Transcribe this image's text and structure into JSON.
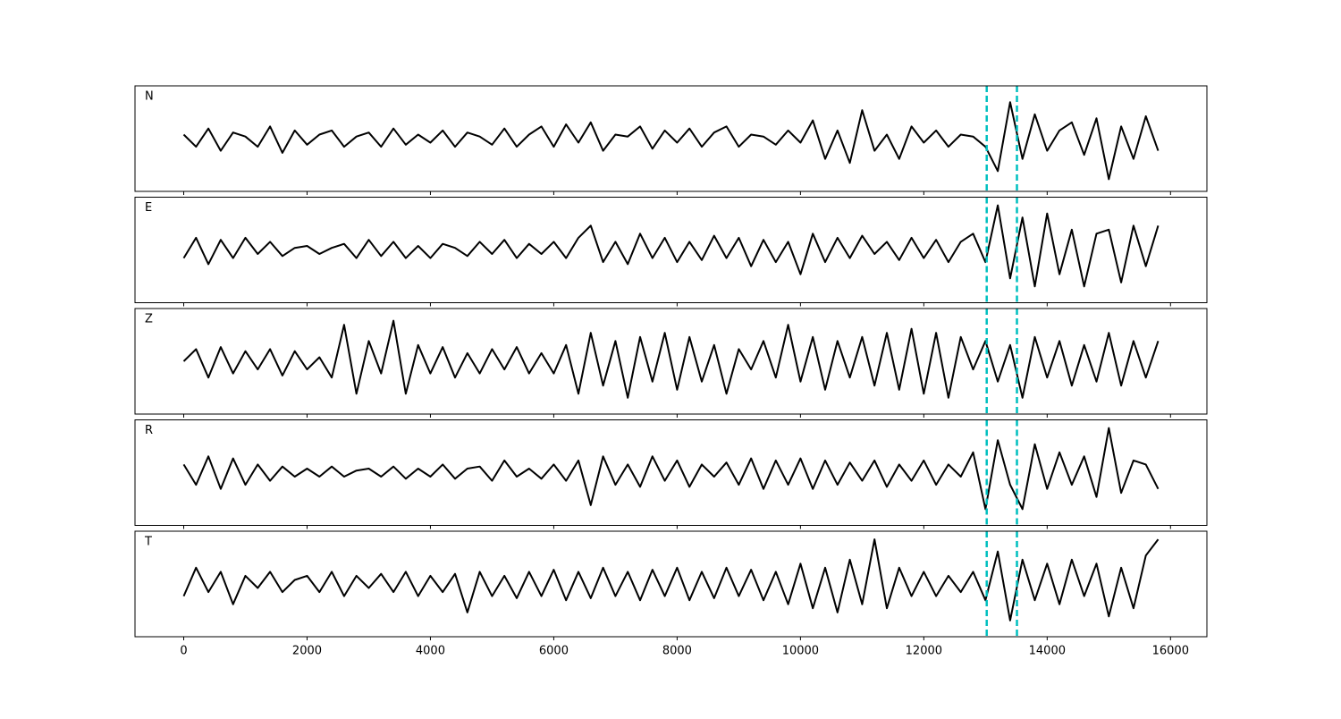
{
  "chart_data": [
    {
      "type": "line",
      "label": "N",
      "color": "#000000",
      "xlim": [
        -790,
        16590
      ],
      "ylim": [
        -1.3,
        1.3
      ],
      "xticks": [
        0,
        2000,
        4000,
        6000,
        8000,
        10000,
        12000,
        14000,
        16000
      ],
      "show_xtick_labels": false,
      "vlines": [
        13020,
        13510
      ],
      "vline_color": "#00bfbf",
      "x": [
        0,
        200,
        400,
        600,
        800,
        1000,
        1200,
        1400,
        1600,
        1800,
        2000,
        2200,
        2400,
        2600,
        2800,
        3000,
        3200,
        3400,
        3600,
        3800,
        4000,
        4200,
        4400,
        4600,
        4800,
        5000,
        5200,
        5400,
        5600,
        5800,
        6000,
        6200,
        6400,
        6600,
        6800,
        7000,
        7200,
        7400,
        7600,
        7800,
        8000,
        8200,
        8400,
        8600,
        8800,
        9000,
        9200,
        9400,
        9600,
        9800,
        10000,
        10200,
        10400,
        10600,
        10800,
        11000,
        11200,
        11400,
        11600,
        11800,
        12000,
        12200,
        12400,
        12600,
        12800,
        13000,
        13200,
        13400,
        13600,
        13800,
        14000,
        14200,
        14400,
        14600,
        14800,
        15000,
        15200,
        15400,
        15600,
        15800
      ],
      "values": [
        0.1,
        -0.2,
        0.25,
        -0.3,
        0.15,
        0.05,
        -0.2,
        0.3,
        -0.35,
        0.2,
        -0.15,
        0.1,
        0.2,
        -0.2,
        0.05,
        0.15,
        -0.2,
        0.25,
        -0.15,
        0.1,
        -0.1,
        0.2,
        -0.2,
        0.15,
        0.05,
        -0.15,
        0.25,
        -0.2,
        0.1,
        0.3,
        -0.2,
        0.35,
        -0.1,
        0.4,
        -0.3,
        0.1,
        0.05,
        0.3,
        -0.25,
        0.2,
        -0.1,
        0.25,
        -0.2,
        0.15,
        0.3,
        -0.2,
        0.1,
        0.05,
        -0.15,
        0.2,
        -0.1,
        0.45,
        -0.5,
        0.2,
        -0.6,
        0.7,
        -0.3,
        0.1,
        -0.5,
        0.3,
        -0.1,
        0.2,
        -0.2,
        0.1,
        0.05,
        -0.2,
        -0.8,
        0.9,
        -0.5,
        0.6,
        -0.3,
        0.2,
        0.4,
        -0.4,
        0.5,
        -1.0,
        0.3,
        -0.5,
        0.55,
        -0.3
      ]
    },
    {
      "type": "line",
      "label": "E",
      "color": "#000000",
      "xlim": [
        -790,
        16590
      ],
      "ylim": [
        -1.3,
        1.3
      ],
      "xticks": [
        0,
        2000,
        4000,
        6000,
        8000,
        10000,
        12000,
        14000,
        16000
      ],
      "show_xtick_labels": false,
      "vlines": [
        13020,
        13510
      ],
      "vline_color": "#00bfbf",
      "x": [
        0,
        200,
        400,
        600,
        800,
        1000,
        1200,
        1400,
        1600,
        1800,
        2000,
        2200,
        2400,
        2600,
        2800,
        3000,
        3200,
        3400,
        3600,
        3800,
        4000,
        4200,
        4400,
        4600,
        4800,
        5000,
        5200,
        5400,
        5600,
        5800,
        6000,
        6200,
        6400,
        6600,
        6800,
        7000,
        7200,
        7400,
        7600,
        7800,
        8000,
        8200,
        8400,
        8600,
        8800,
        9000,
        9200,
        9400,
        9600,
        9800,
        10000,
        10200,
        10400,
        10600,
        10800,
        11000,
        11200,
        11400,
        11600,
        11800,
        12000,
        12200,
        12400,
        12600,
        12800,
        13000,
        13200,
        13400,
        13600,
        13800,
        14000,
        14200,
        14400,
        14600,
        14800,
        15000,
        15200,
        15400,
        15600,
        15800
      ],
      "values": [
        -0.2,
        0.3,
        -0.35,
        0.25,
        -0.2,
        0.3,
        -0.1,
        0.2,
        -0.15,
        0.05,
        0.1,
        -0.1,
        0.05,
        0.15,
        -0.2,
        0.25,
        -0.15,
        0.2,
        -0.2,
        0.1,
        -0.2,
        0.15,
        0.05,
        -0.15,
        0.2,
        -0.1,
        0.25,
        -0.2,
        0.15,
        -0.1,
        0.2,
        -0.2,
        0.3,
        0.6,
        -0.3,
        0.2,
        -0.35,
        0.4,
        -0.2,
        0.3,
        -0.3,
        0.2,
        -0.25,
        0.35,
        -0.2,
        0.3,
        -0.4,
        0.25,
        -0.3,
        0.2,
        -0.6,
        0.4,
        -0.3,
        0.3,
        -0.2,
        0.35,
        -0.1,
        0.2,
        -0.25,
        0.3,
        -0.2,
        0.25,
        -0.3,
        0.2,
        0.4,
        -0.3,
        1.1,
        -0.7,
        0.8,
        -0.9,
        0.9,
        -0.6,
        0.5,
        -0.9,
        0.4,
        0.5,
        -0.8,
        0.6,
        -0.4,
        0.6
      ]
    },
    {
      "type": "line",
      "label": "Z",
      "color": "#000000",
      "xlim": [
        -790,
        16590
      ],
      "ylim": [
        -1.3,
        1.3
      ],
      "xticks": [
        0,
        2000,
        4000,
        6000,
        8000,
        10000,
        12000,
        14000,
        16000
      ],
      "show_xtick_labels": false,
      "vlines": [
        13020,
        13510
      ],
      "vline_color": "#00bfbf",
      "x": [
        0,
        200,
        400,
        600,
        800,
        1000,
        1200,
        1400,
        1600,
        1800,
        2000,
        2200,
        2400,
        2600,
        2800,
        3000,
        3200,
        3400,
        3600,
        3800,
        4000,
        4200,
        4400,
        4600,
        4800,
        5000,
        5200,
        5400,
        5600,
        5800,
        6000,
        6200,
        6400,
        6600,
        6800,
        7000,
        7200,
        7400,
        7600,
        7800,
        8000,
        8200,
        8400,
        8600,
        8800,
        9000,
        9200,
        9400,
        9600,
        9800,
        10000,
        10200,
        10400,
        10600,
        10800,
        11000,
        11200,
        11400,
        11600,
        11800,
        12000,
        12200,
        12400,
        12600,
        12800,
        13000,
        13200,
        13400,
        13600,
        13800,
        14000,
        14200,
        14400,
        14600,
        14800,
        15000,
        15200,
        15400,
        15600,
        15800
      ],
      "values": [
        0.0,
        0.3,
        -0.4,
        0.35,
        -0.3,
        0.25,
        -0.2,
        0.3,
        -0.35,
        0.25,
        -0.2,
        0.1,
        -0.4,
        0.9,
        -0.8,
        0.5,
        -0.3,
        1.0,
        -0.8,
        0.4,
        -0.3,
        0.35,
        -0.4,
        0.2,
        -0.3,
        0.3,
        -0.2,
        0.35,
        -0.3,
        0.2,
        -0.3,
        0.4,
        -0.8,
        0.7,
        -0.6,
        0.5,
        -0.9,
        0.6,
        -0.5,
        0.7,
        -0.7,
        0.6,
        -0.5,
        0.4,
        -0.8,
        0.3,
        -0.2,
        0.5,
        -0.4,
        0.9,
        -0.5,
        0.6,
        -0.7,
        0.5,
        -0.4,
        0.6,
        -0.6,
        0.7,
        -0.7,
        0.8,
        -0.8,
        0.7,
        -0.9,
        0.6,
        -0.2,
        0.5,
        -0.5,
        0.4,
        -0.9,
        0.6,
        -0.4,
        0.5,
        -0.6,
        0.4,
        -0.5,
        0.7,
        -0.6,
        0.5,
        -0.4,
        0.5
      ]
    },
    {
      "type": "line",
      "label": "R",
      "color": "#000000",
      "xlim": [
        -790,
        16590
      ],
      "ylim": [
        -1.3,
        1.3
      ],
      "xticks": [
        0,
        2000,
        4000,
        6000,
        8000,
        10000,
        12000,
        14000,
        16000
      ],
      "show_xtick_labels": false,
      "vlines": [
        13020,
        13510
      ],
      "vline_color": "#00bfbf",
      "x": [
        0,
        200,
        400,
        600,
        800,
        1000,
        1200,
        1400,
        1600,
        1800,
        2000,
        2200,
        2400,
        2600,
        2800,
        3000,
        3200,
        3400,
        3600,
        3800,
        4000,
        4200,
        4400,
        4600,
        4800,
        5000,
        5200,
        5400,
        5600,
        5800,
        6000,
        6200,
        6400,
        6600,
        6800,
        7000,
        7200,
        7400,
        7600,
        7800,
        8000,
        8200,
        8400,
        8600,
        8800,
        9000,
        9200,
        9400,
        9600,
        9800,
        10000,
        10200,
        10400,
        10600,
        10800,
        11000,
        11200,
        11400,
        11600,
        11800,
        12000,
        12200,
        12400,
        12600,
        12800,
        13000,
        13200,
        13400,
        13600,
        13800,
        14000,
        14200,
        14400,
        14600,
        14800,
        15000,
        15200,
        15400,
        15600,
        15800
      ],
      "values": [
        0.2,
        -0.3,
        0.4,
        -0.4,
        0.35,
        -0.3,
        0.2,
        -0.2,
        0.15,
        -0.1,
        0.1,
        -0.1,
        0.15,
        -0.1,
        0.05,
        0.1,
        -0.1,
        0.15,
        -0.15,
        0.1,
        -0.1,
        0.2,
        -0.15,
        0.1,
        0.15,
        -0.2,
        0.3,
        -0.1,
        0.1,
        -0.15,
        0.2,
        -0.2,
        0.3,
        -0.8,
        0.4,
        -0.3,
        0.2,
        -0.35,
        0.4,
        -0.2,
        0.3,
        -0.35,
        0.2,
        -0.1,
        0.25,
        -0.3,
        0.35,
        -0.4,
        0.3,
        -0.3,
        0.35,
        -0.4,
        0.3,
        -0.3,
        0.25,
        -0.2,
        0.3,
        -0.35,
        0.2,
        -0.2,
        0.3,
        -0.3,
        0.2,
        -0.1,
        0.5,
        -0.9,
        0.8,
        -0.3,
        -0.9,
        0.7,
        -0.4,
        0.5,
        -0.3,
        0.4,
        -0.6,
        1.1,
        -0.5,
        0.3,
        0.2,
        -0.4
      ]
    },
    {
      "type": "line",
      "label": "T",
      "color": "#000000",
      "xlim": [
        -790,
        16590
      ],
      "ylim": [
        -1.3,
        1.3
      ],
      "xticks": [
        0,
        2000,
        4000,
        6000,
        8000,
        10000,
        12000,
        14000,
        16000
      ],
      "show_xtick_labels": true,
      "vlines": [
        13020,
        13510
      ],
      "vline_color": "#00bfbf",
      "x": [
        0,
        200,
        400,
        600,
        800,
        1000,
        1200,
        1400,
        1600,
        1800,
        2000,
        2200,
        2400,
        2600,
        2800,
        3000,
        3200,
        3400,
        3600,
        3800,
        4000,
        4200,
        4400,
        4600,
        4800,
        5000,
        5200,
        5400,
        5600,
        5800,
        6000,
        6200,
        6400,
        6600,
        6800,
        7000,
        7200,
        7400,
        7600,
        7800,
        8000,
        8200,
        8400,
        8600,
        8800,
        9000,
        9200,
        9400,
        9600,
        9800,
        10000,
        10200,
        10400,
        10600,
        10800,
        11000,
        11200,
        11400,
        11600,
        11800,
        12000,
        12200,
        12400,
        12600,
        12800,
        13000,
        13200,
        13400,
        13600,
        13800,
        14000,
        14200,
        14400,
        14600,
        14800,
        15000,
        15200,
        15400,
        15600,
        15800
      ],
      "values": [
        -0.3,
        0.4,
        -0.2,
        0.3,
        -0.5,
        0.2,
        -0.1,
        0.3,
        -0.2,
        0.1,
        0.2,
        -0.2,
        0.3,
        -0.3,
        0.2,
        -0.1,
        0.25,
        -0.2,
        0.3,
        -0.3,
        0.2,
        -0.2,
        0.25,
        -0.7,
        0.3,
        -0.3,
        0.2,
        -0.35,
        0.3,
        -0.3,
        0.35,
        -0.4,
        0.3,
        -0.35,
        0.4,
        -0.3,
        0.3,
        -0.4,
        0.35,
        -0.3,
        0.4,
        -0.4,
        0.3,
        -0.35,
        0.4,
        -0.3,
        0.35,
        -0.4,
        0.3,
        -0.5,
        0.5,
        -0.6,
        0.4,
        -0.7,
        0.6,
        -0.5,
        1.1,
        -0.6,
        0.4,
        -0.3,
        0.3,
        -0.3,
        0.2,
        -0.2,
        0.3,
        -0.4,
        0.8,
        -0.9,
        0.6,
        -0.4,
        0.5,
        -0.5,
        0.6,
        -0.3,
        0.5,
        -0.8,
        0.4,
        -0.6,
        0.7,
        1.1
      ]
    }
  ]
}
